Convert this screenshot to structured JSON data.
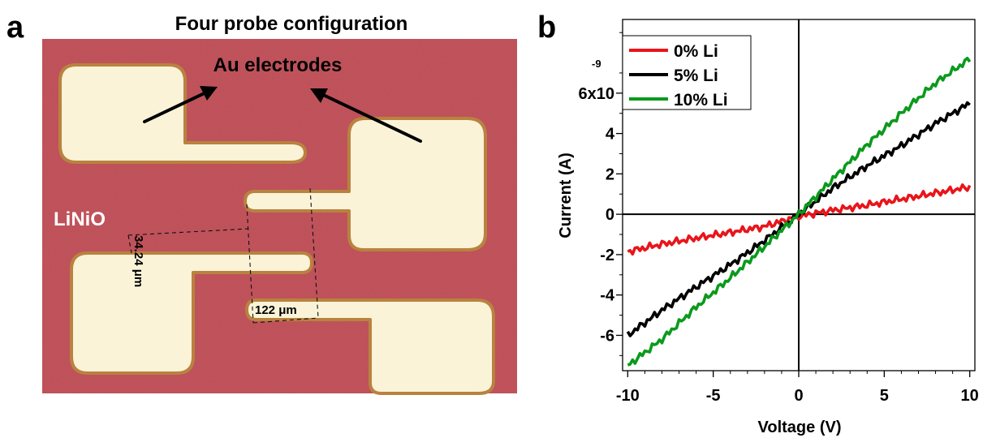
{
  "panel_a": {
    "panel_label": "a",
    "title": "Four probe configuration",
    "electrodes_label": "Au electrodes",
    "material_label": "LiNiO",
    "dimension_vertical": "34.24 μm",
    "dimension_horizontal": "122 μm",
    "colors": {
      "substrate": "#c2525a",
      "electrode": "#faf3d8",
      "electrode_edge": "#b9823f",
      "arrow": "#000000"
    }
  },
  "panel_b": {
    "panel_label": "b",
    "colors": {
      "0% Li": "#e8151a",
      "5% Li": "#000000",
      "10% Li": "#0a9a1c"
    }
  },
  "chart_data": {
    "type": "line",
    "xlabel": "Voltage (V)",
    "ylabel": "Current (A)",
    "x_ticks": [
      "-10",
      "-5",
      "0",
      "5",
      "10"
    ],
    "y_ticks": [
      "-6",
      "-4",
      "-2",
      "0",
      "2",
      "4",
      "6x10"
    ],
    "y_exponent": "-9",
    "xlim": [
      -10.3,
      10.3
    ],
    "ylim": [
      -7.75,
      9.65
    ],
    "y_unit_scale": "1e-9",
    "zero_axes": true,
    "legend_position": "top-left",
    "series": [
      {
        "name": "0% Li",
        "x": [
          -10,
          -8,
          -6,
          -4,
          -2,
          0,
          2,
          4,
          6,
          8,
          10
        ],
        "y": [
          -1.85,
          -1.48,
          -1.18,
          -0.9,
          -0.6,
          -0.1,
          0.2,
          0.45,
          0.75,
          1.05,
          1.35
        ]
      },
      {
        "name": "5% Li",
        "x": [
          -10,
          -8,
          -6,
          -4,
          -2,
          0,
          2,
          4,
          6,
          8,
          10
        ],
        "y": [
          -6.0,
          -4.75,
          -3.6,
          -2.5,
          -1.3,
          0.0,
          1.3,
          2.4,
          3.4,
          4.5,
          5.5
        ]
      },
      {
        "name": "10% Li",
        "x": [
          -10,
          -8,
          -6,
          -4,
          -2,
          0,
          2,
          4,
          6,
          8,
          10
        ],
        "y": [
          -7.5,
          -6.2,
          -4.6,
          -3.15,
          -1.6,
          0.0,
          1.75,
          3.45,
          5.0,
          6.5,
          7.7
        ]
      }
    ]
  }
}
